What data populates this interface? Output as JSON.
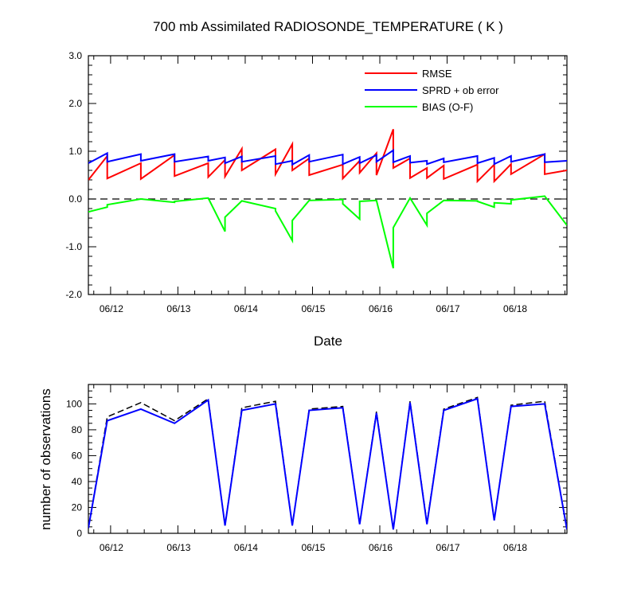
{
  "chart_data": [
    {
      "type": "line",
      "title": "700 mb Assimilated RADIOSONDE_TEMPERATURE ( K )",
      "xlabel": "Date",
      "ylabel": "",
      "xlim": [
        11.67,
        18.78
      ],
      "ylim": [
        -2.0,
        3.0
      ],
      "x_tick_labels": [
        "06/12",
        "06/13",
        "06/14",
        "06/15",
        "06/16",
        "06/17",
        "06/18"
      ],
      "x_ticks": [
        12,
        13,
        14,
        15,
        16,
        17,
        18
      ],
      "y_tick_labels": [
        "-2.0",
        "-1.0",
        "0.0",
        "1.0",
        "2.0",
        "3.0"
      ],
      "y_ticks": [
        -2,
        -1,
        0,
        1,
        2,
        3
      ],
      "zero_line": "dashed",
      "legend_position": "top-right",
      "series": [
        {
          "name": "RMSE",
          "color": "#ff0000",
          "x": [
            11.67,
            11.95,
            11.95,
            12.45,
            12.45,
            12.95,
            12.95,
            13.45,
            13.45,
            13.7,
            13.7,
            13.95,
            13.95,
            14.45,
            14.45,
            14.7,
            14.7,
            14.95,
            14.95,
            15.45,
            15.45,
            15.7,
            15.7,
            15.95,
            15.95,
            16.2,
            16.2,
            16.45,
            16.45,
            16.7,
            16.7,
            16.95,
            16.95,
            17.45,
            17.45,
            17.7,
            17.7,
            17.95,
            17.95,
            18.45,
            18.45,
            18.78
          ],
          "y": [
            0.4,
            0.9,
            0.43,
            0.75,
            0.42,
            0.92,
            0.48,
            0.75,
            0.46,
            0.82,
            0.47,
            1.05,
            0.6,
            1.04,
            0.52,
            1.15,
            0.6,
            0.85,
            0.5,
            0.72,
            0.43,
            0.8,
            0.55,
            0.96,
            0.5,
            1.46,
            0.65,
            0.85,
            0.44,
            0.65,
            0.44,
            0.7,
            0.42,
            0.72,
            0.37,
            0.72,
            0.37,
            0.73,
            0.52,
            0.94,
            0.52,
            0.6
          ]
        },
        {
          "name": "SPRD + ob error",
          "color": "#0000ff",
          "x": [
            11.67,
            11.95,
            11.95,
            12.45,
            12.45,
            12.95,
            12.95,
            13.45,
            13.45,
            13.7,
            13.7,
            13.95,
            13.95,
            14.45,
            14.45,
            14.7,
            14.7,
            14.95,
            14.95,
            15.45,
            15.45,
            15.7,
            15.7,
            15.95,
            15.95,
            16.2,
            16.2,
            16.45,
            16.45,
            16.7,
            16.7,
            16.95,
            16.95,
            17.45,
            17.45,
            17.7,
            17.7,
            17.95,
            17.95,
            18.45,
            18.45,
            18.78
          ],
          "y": [
            0.75,
            0.96,
            0.78,
            0.94,
            0.8,
            0.94,
            0.78,
            0.89,
            0.8,
            0.87,
            0.75,
            0.89,
            0.78,
            0.9,
            0.73,
            0.8,
            0.72,
            0.92,
            0.78,
            0.93,
            0.73,
            0.88,
            0.75,
            0.92,
            0.78,
            1.02,
            0.77,
            0.9,
            0.76,
            0.8,
            0.73,
            0.85,
            0.77,
            0.9,
            0.75,
            0.86,
            0.73,
            0.9,
            0.78,
            0.94,
            0.77,
            0.8
          ]
        },
        {
          "name": "BIAS (O-F)",
          "color": "#00ff00",
          "x": [
            11.67,
            11.95,
            11.95,
            12.45,
            12.45,
            12.95,
            12.95,
            13.45,
            13.45,
            13.7,
            13.7,
            13.95,
            13.95,
            14.45,
            14.45,
            14.7,
            14.7,
            14.95,
            14.95,
            15.45,
            15.45,
            15.7,
            15.7,
            15.95,
            15.95,
            16.2,
            16.2,
            16.45,
            16.45,
            16.7,
            16.7,
            16.95,
            16.95,
            17.45,
            17.45,
            17.7,
            17.7,
            17.95,
            17.95,
            18.45,
            18.45,
            18.78
          ],
          "y": [
            -0.27,
            -0.17,
            -0.12,
            0.0,
            0.0,
            -0.07,
            -0.05,
            0.02,
            0.02,
            -0.68,
            -0.38,
            -0.04,
            -0.04,
            -0.2,
            -0.25,
            -0.87,
            -0.45,
            -0.03,
            -0.03,
            -0.01,
            -0.1,
            -0.42,
            -0.05,
            -0.03,
            -0.03,
            -1.45,
            -0.6,
            0.02,
            0.02,
            -0.55,
            -0.3,
            -0.03,
            -0.03,
            -0.04,
            -0.05,
            -0.17,
            -0.08,
            -0.1,
            -0.02,
            0.06,
            0.06,
            -0.55
          ]
        }
      ]
    },
    {
      "type": "line",
      "title": "",
      "xlabel": "",
      "ylabel": "number of observations",
      "xlim": [
        11.67,
        18.78
      ],
      "ylim": [
        0,
        115
      ],
      "x_tick_labels": [
        "06/12",
        "06/13",
        "06/14",
        "06/15",
        "06/16",
        "06/17",
        "06/18"
      ],
      "x_ticks": [
        12,
        13,
        14,
        15,
        16,
        17,
        18
      ],
      "y_tick_labels": [
        "0",
        "20",
        "40",
        "60",
        "80",
        "100"
      ],
      "y_ticks": [
        0,
        20,
        40,
        60,
        80,
        100
      ],
      "series": [
        {
          "color": "#000000",
          "dash": "dashed",
          "x": [
            11.67,
            11.95,
            12.45,
            12.95,
            13.45,
            13.7,
            13.95,
            14.45,
            14.7,
            14.95,
            15.45,
            15.7,
            15.95,
            16.2,
            16.45,
            16.7,
            16.95,
            17.45,
            17.7,
            17.95,
            18.45,
            18.78
          ],
          "y": [
            4,
            90,
            101,
            87,
            104,
            6,
            97,
            102,
            6,
            96,
            98,
            7,
            94,
            3,
            102,
            8,
            96,
            105,
            10,
            99,
            102,
            3
          ]
        },
        {
          "color": "#0000ff",
          "dash": "solid",
          "x": [
            11.67,
            11.95,
            12.45,
            12.95,
            13.45,
            13.7,
            13.95,
            14.45,
            14.7,
            14.95,
            15.45,
            15.7,
            15.95,
            16.2,
            16.45,
            16.7,
            16.95,
            17.45,
            17.7,
            17.95,
            18.45,
            18.78
          ],
          "y": [
            4,
            87,
            96,
            85,
            103,
            6,
            95,
            100,
            6,
            95,
            97,
            7,
            93,
            3,
            101,
            7,
            95,
            104,
            10,
            98,
            100,
            3
          ]
        }
      ]
    }
  ]
}
